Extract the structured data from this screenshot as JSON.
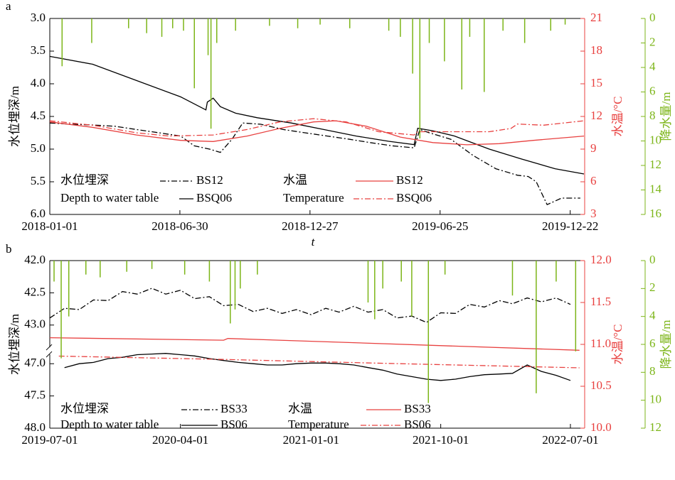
{
  "chart_data": [
    {
      "type": "line",
      "panel": "a",
      "xlabel": "t",
      "ylabel": "水位埋深/m",
      "y2label": "水温/°C",
      "y3label": "降水量/m",
      "legend_labels": [
        "水位埋深",
        "Depth to water table",
        "水温",
        "Temperature"
      ],
      "xlim": [
        "2018-01-01",
        "2020-01-11"
      ],
      "xticks": [
        "2018-01-01",
        "2018-06-30",
        "2018-12-27",
        "2019-06-25",
        "2019-12-22"
      ],
      "ylim": [
        6.0,
        3.0
      ],
      "yticks": [
        {
          "value": 3.0,
          "label": "3.0"
        },
        {
          "value": 3.5,
          "label": "3.5"
        },
        {
          "value": 4.0,
          "label": "4.0"
        },
        {
          "value": 4.5,
          "label": "4.5"
        },
        {
          "value": 5.0,
          "label": "5.0"
        },
        {
          "value": 5.5,
          "label": "5.5"
        },
        {
          "value": 6.0,
          "label": "6.0"
        }
      ],
      "y2lim": [
        3,
        21
      ],
      "y2ticks": [
        3,
        6,
        9,
        12,
        15,
        18,
        21
      ],
      "y3lim": [
        16,
        0
      ],
      "y3ticks": [
        0,
        2,
        4,
        6,
        8,
        10,
        12,
        14,
        16
      ],
      "series": [
        {
          "name": "BS12",
          "color": "#000000",
          "style": "dashdot",
          "axis": "y",
          "x": [
            "2018-01-01",
            "2018-02-01",
            "2018-03-01",
            "2018-04-01",
            "2018-05-01",
            "2018-06-01",
            "2018-07-01",
            "2018-07-20",
            "2018-08-10",
            "2018-08-25",
            "2018-09-10",
            "2018-09-25",
            "2018-10-20",
            "2018-11-20",
            "2018-12-20",
            "2019-01-20",
            "2019-02-20",
            "2019-03-20",
            "2019-04-20",
            "2019-05-20",
            "2019-05-28",
            "2019-06-10",
            "2019-07-10",
            "2019-08-10",
            "2019-09-10",
            "2019-10-10",
            "2019-10-25",
            "2019-11-05",
            "2019-11-20",
            "2019-12-10",
            "2020-01-05"
          ],
          "values": [
            4.6,
            4.62,
            4.63,
            4.65,
            4.7,
            4.75,
            4.8,
            4.95,
            5.0,
            5.05,
            4.85,
            4.6,
            4.62,
            4.7,
            4.75,
            4.8,
            4.85,
            4.9,
            4.95,
            4.98,
            4.7,
            4.75,
            4.85,
            5.1,
            5.3,
            5.4,
            5.42,
            5.5,
            5.85,
            5.75,
            5.75
          ]
        },
        {
          "name": "BSQ06",
          "color": "#000000",
          "style": "solid",
          "axis": "y",
          "x": [
            "2018-01-01",
            "2018-03-01",
            "2018-05-01",
            "2018-07-01",
            "2018-08-05",
            "2018-08-07",
            "2018-08-15",
            "2018-08-25",
            "2018-09-15",
            "2018-10-15",
            "2018-12-01",
            "2019-01-15",
            "2019-03-01",
            "2019-04-15",
            "2019-05-20",
            "2019-05-25",
            "2019-06-15",
            "2019-07-15",
            "2019-09-01",
            "2019-10-15",
            "2019-12-01",
            "2020-01-10"
          ],
          "values": [
            3.58,
            3.7,
            3.95,
            4.2,
            4.4,
            4.28,
            4.22,
            4.35,
            4.45,
            4.52,
            4.6,
            4.7,
            4.8,
            4.88,
            4.93,
            4.68,
            4.72,
            4.8,
            5.0,
            5.15,
            5.3,
            5.38
          ]
        },
        {
          "name": "BS12",
          "color": "#e8403f",
          "style": "solid",
          "axis": "y2",
          "x": [
            "2018-01-01",
            "2018-03-01",
            "2018-05-01",
            "2018-07-01",
            "2018-08-15",
            "2018-10-01",
            "2018-11-15",
            "2019-01-01",
            "2019-02-01",
            "2019-03-15",
            "2019-05-01",
            "2019-06-15",
            "2019-08-01",
            "2019-09-15",
            "2019-11-01",
            "2020-01-10"
          ],
          "values": [
            11.5,
            11.0,
            10.3,
            9.8,
            9.7,
            10.2,
            10.9,
            11.5,
            11.6,
            11.1,
            10.1,
            9.6,
            9.4,
            9.5,
            9.8,
            10.2
          ]
        },
        {
          "name": "BSQ06",
          "color": "#e8403f",
          "style": "dashdot",
          "axis": "y2",
          "x": [
            "2018-01-01",
            "2018-03-01",
            "2018-05-01",
            "2018-06-15",
            "2018-08-15",
            "2018-10-01",
            "2018-11-15",
            "2019-01-01",
            "2019-02-15",
            "2019-04-01",
            "2019-05-20",
            "2019-05-25",
            "2019-07-15",
            "2019-09-01",
            "2019-10-01",
            "2019-10-10",
            "2019-11-15",
            "2020-01-10"
          ],
          "values": [
            11.6,
            11.2,
            10.5,
            10.2,
            10.3,
            10.8,
            11.5,
            11.8,
            11.5,
            10.6,
            10.3,
            10.6,
            10.6,
            10.6,
            10.9,
            11.3,
            11.2,
            11.6
          ]
        },
        {
          "type": "bar",
          "color": "#7cb518",
          "axis": "y3",
          "x": [
            "2018-01-18",
            "2018-02-28",
            "2018-04-20",
            "2018-05-15",
            "2018-06-05",
            "2018-06-20",
            "2018-07-05",
            "2018-07-20",
            "2018-08-08",
            "2018-08-12",
            "2018-08-20",
            "2018-09-15",
            "2018-11-01",
            "2018-12-10",
            "2019-01-10",
            "2019-02-20",
            "2019-04-15",
            "2019-05-01",
            "2019-05-18",
            "2019-05-28",
            "2019-06-10",
            "2019-07-01",
            "2019-07-25",
            "2019-08-05",
            "2019-08-25",
            "2019-09-20",
            "2019-10-20",
            "2019-11-25",
            "2019-12-15"
          ],
          "values": [
            3.9,
            2.0,
            0.8,
            1.2,
            1.5,
            0.8,
            1.0,
            5.7,
            3.0,
            9.0,
            2.0,
            1.0,
            0.6,
            0.8,
            0.5,
            0.8,
            1.0,
            1.5,
            4.5,
            9.8,
            2.0,
            3.5,
            5.8,
            1.5,
            6.0,
            1.0,
            2.0,
            1.0,
            0.5
          ]
        }
      ]
    },
    {
      "type": "line",
      "panel": "b",
      "ylabel": "水位埋深/m",
      "y2label": "水温/°C",
      "y3label": "降水量/m",
      "legend_labels": [
        "水位埋深",
        "Depth to water table",
        "水温",
        "Temperature"
      ],
      "xlim": [
        "2019-07-01",
        "2022-07-31"
      ],
      "xticks": [
        "2019-07-01",
        "2020-04-01",
        "2021-01-01",
        "2021-10-01",
        "2022-07-01"
      ],
      "ylim": [
        48.0,
        42.0
      ],
      "ybreak": [
        43.4,
        46.8
      ],
      "yticks": [
        {
          "value": 42.0,
          "label": "42.0"
        },
        {
          "value": 42.5,
          "label": "42.5"
        },
        {
          "value": 43.0,
          "label": "43.0"
        },
        {
          "value": 47.0,
          "label": "47.0"
        },
        {
          "value": 47.5,
          "label": "47.5"
        },
        {
          "value": 48.0,
          "label": "48.0"
        }
      ],
      "y2lim": [
        10.0,
        12.0
      ],
      "y2ticks": [
        {
          "value": 10.0,
          "label": "10.0"
        },
        {
          "value": 10.5,
          "label": "10.5"
        },
        {
          "value": 11.0,
          "label": "11.0"
        },
        {
          "value": 11.5,
          "label": "11.5"
        },
        {
          "value": 12.0,
          "label": "12.0"
        }
      ],
      "y3lim": [
        12,
        0
      ],
      "y3ticks": [
        0,
        2,
        4,
        6,
        8,
        10,
        12
      ],
      "series": [
        {
          "name": "BS33",
          "color": "#000000",
          "style": "dashdot",
          "axis": "y",
          "x": [
            "2019-07-01",
            "2019-08-01",
            "2019-09-01",
            "2019-10-01",
            "2019-11-01",
            "2019-12-01",
            "2020-01-01",
            "2020-02-01",
            "2020-03-01",
            "2020-04-01",
            "2020-05-01",
            "2020-06-01",
            "2020-07-01",
            "2020-08-01",
            "2020-09-01",
            "2020-10-01",
            "2020-11-01",
            "2020-12-01",
            "2021-01-01",
            "2021-02-01",
            "2021-03-01",
            "2021-04-01",
            "2021-05-01",
            "2021-06-01",
            "2021-07-01",
            "2021-08-01",
            "2021-09-01",
            "2021-10-01",
            "2021-11-01",
            "2021-12-01",
            "2022-01-01",
            "2022-02-01",
            "2022-03-01",
            "2022-04-01",
            "2022-05-01",
            "2022-06-01",
            "2022-07-01"
          ],
          "values": [
            42.89,
            42.74,
            42.76,
            42.61,
            42.62,
            42.48,
            42.52,
            42.43,
            42.52,
            42.46,
            42.59,
            42.56,
            42.7,
            42.68,
            42.79,
            42.74,
            42.82,
            42.76,
            42.84,
            42.74,
            42.8,
            42.71,
            42.8,
            42.76,
            42.89,
            42.86,
            42.96,
            42.81,
            42.82,
            42.68,
            42.72,
            42.62,
            42.67,
            42.58,
            42.64,
            42.58,
            42.68
          ]
        },
        {
          "name": "BS06",
          "color": "#000000",
          "style": "solid",
          "axis": "y",
          "x": [
            "2019-07-01",
            "2019-08-01",
            "2019-09-01",
            "2019-10-01",
            "2019-11-01",
            "2019-12-01",
            "2020-01-01",
            "2020-02-01",
            "2020-03-01",
            "2020-04-01",
            "2020-05-01",
            "2020-06-01",
            "2020-07-01",
            "2020-08-01",
            "2020-09-01",
            "2020-10-01",
            "2020-11-01",
            "2020-12-01",
            "2021-01-01",
            "2021-02-01",
            "2021-03-01",
            "2021-04-01",
            "2021-05-01",
            "2021-06-01",
            "2021-07-01",
            "2021-08-01",
            "2021-09-01",
            "2021-10-01",
            "2021-11-01",
            "2021-12-01",
            "2022-01-01",
            "2022-02-01",
            "2022-03-01",
            "2022-04-01",
            "2022-05-01",
            "2022-06-01",
            "2022-07-01"
          ],
          "values": [
            null,
            47.06,
            47.0,
            46.98,
            46.92,
            46.9,
            46.86,
            46.85,
            46.84,
            46.86,
            46.88,
            46.92,
            46.95,
            46.98,
            47.0,
            47.02,
            47.02,
            47.0,
            46.99,
            46.99,
            47.0,
            47.02,
            47.06,
            47.1,
            47.16,
            47.2,
            47.24,
            47.26,
            47.24,
            47.2,
            47.17,
            47.16,
            47.15,
            47.02,
            47.12,
            47.18,
            47.26
          ]
        },
        {
          "name": "BS33",
          "color": "#e8403f",
          "style": "solid",
          "axis": "y2",
          "x": [
            "2019-07-01",
            "2020-07-01",
            "2020-07-10",
            "2022-07-20"
          ],
          "values": [
            11.08,
            11.05,
            11.07,
            10.93
          ]
        },
        {
          "name": "BS06",
          "color": "#e8403f",
          "style": "dashdot",
          "axis": "y2",
          "x": [
            "2019-07-20",
            "2020-07-01",
            "2021-07-01",
            "2022-07-20"
          ],
          "values": [
            10.86,
            10.82,
            10.77,
            10.72
          ]
        },
        {
          "type": "bar",
          "color": "#7cb518",
          "axis": "y3",
          "x": [
            "2019-07-10",
            "2019-07-25",
            "2019-08-10",
            "2019-09-15",
            "2019-10-15",
            "2019-12-10",
            "2020-02-01",
            "2020-04-10",
            "2020-06-01",
            "2020-07-15",
            "2020-07-25",
            "2020-08-05",
            "2020-09-10",
            "2021-05-01",
            "2021-05-15",
            "2021-06-01",
            "2021-07-10",
            "2021-08-01",
            "2021-09-05",
            "2021-10-10",
            "2022-03-01",
            "2022-04-20",
            "2022-06-01",
            "2022-07-12"
          ],
          "values": [
            1.5,
            7.0,
            4.0,
            1.0,
            1.2,
            0.8,
            0.6,
            1.0,
            1.5,
            4.5,
            3.5,
            2.0,
            1.0,
            3.0,
            4.2,
            2.0,
            1.5,
            4.0,
            10.2,
            1.0,
            2.5,
            9.5,
            1.5,
            6.5
          ]
        }
      ]
    }
  ]
}
